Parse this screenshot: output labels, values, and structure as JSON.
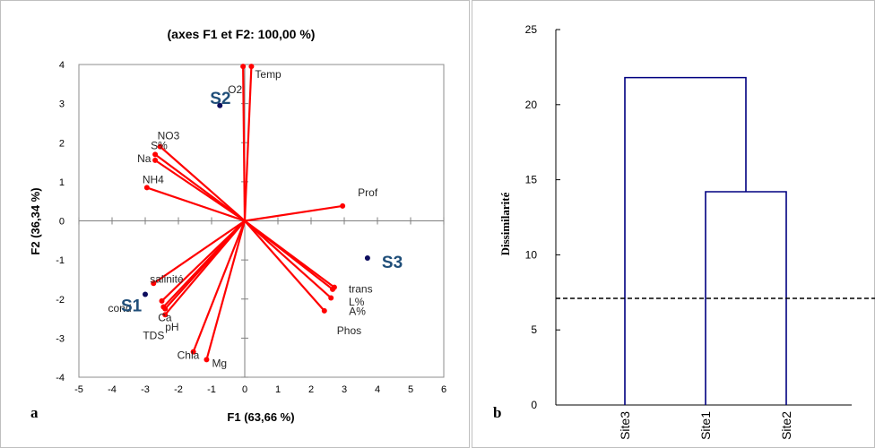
{
  "chart_data": [
    {
      "type": "scatter",
      "subtype": "biplot",
      "panel_label": "a",
      "title": "(axes F1 et F2: 100,00 %)",
      "xlabel": "F1 (63,66 %)",
      "ylabel": "F2 (36,34 %)",
      "xlim": [
        -5,
        6
      ],
      "ylim": [
        -4,
        4
      ],
      "xticks": [
        -5,
        -4,
        -3,
        -2,
        -1,
        0,
        1,
        2,
        3,
        4,
        5,
        6
      ],
      "yticks": [
        -4,
        -3,
        -2,
        -1,
        0,
        1,
        2,
        3,
        4
      ],
      "grid": false,
      "variables": [
        {
          "name": "Temp",
          "x": 0.2,
          "y": 3.95
        },
        {
          "name": "O2",
          "x": -0.05,
          "y": 3.95
        },
        {
          "name": "NO3",
          "x": -2.55,
          "y": 1.9
        },
        {
          "name": "S%",
          "x": -2.7,
          "y": 1.7
        },
        {
          "name": "Na",
          "x": -2.7,
          "y": 1.55
        },
        {
          "name": "NH4",
          "x": -2.95,
          "y": 0.85
        },
        {
          "name": "Prof",
          "x": 2.95,
          "y": 0.38
        },
        {
          "name": "trans",
          "x": 2.7,
          "y": -1.7
        },
        {
          "name": "L%",
          "x": 2.65,
          "y": -1.75
        },
        {
          "name": "A%",
          "x": 2.6,
          "y": -1.97
        },
        {
          "name": "Phos",
          "x": 2.4,
          "y": -2.3
        },
        {
          "name": "salinité",
          "x": -2.75,
          "y": -1.6
        },
        {
          "name": "cond",
          "x": -2.5,
          "y": -2.05
        },
        {
          "name": "TDS",
          "x": -2.45,
          "y": -2.2
        },
        {
          "name": "Ca",
          "x": -2.4,
          "y": -2.25
        },
        {
          "name": "pH",
          "x": -2.4,
          "y": -2.4
        },
        {
          "name": "Chla",
          "x": -1.55,
          "y": -3.35
        },
        {
          "name": "Mg",
          "x": -1.15,
          "y": -3.55
        }
      ],
      "sites": [
        {
          "name": "S1",
          "x": -3.0,
          "y": -1.88
        },
        {
          "name": "S2",
          "x": -0.75,
          "y": 2.95
        },
        {
          "name": "S3",
          "x": 3.7,
          "y": -0.95
        }
      ],
      "colors": {
        "vectors": "#ff0000",
        "sites": "#0d0d5e",
        "site_labels": "#1f4e79"
      }
    },
    {
      "type": "dendrogram",
      "panel_label": "b",
      "ylabel": "Dissimilarité",
      "ylim": [
        0,
        25
      ],
      "yticks": [
        0,
        5,
        10,
        15,
        20,
        25
      ],
      "leaves": [
        "Site3",
        "Site1",
        "Site2"
      ],
      "merges": [
        {
          "left": "Site1",
          "right": "Site2",
          "height": 14.2
        },
        {
          "left": "Site3",
          "right": "Site1+Site2",
          "height": 21.8
        }
      ],
      "cut_height": 7.1,
      "colors": {
        "branches": "#000080",
        "cut_line": "#000000"
      }
    }
  ]
}
